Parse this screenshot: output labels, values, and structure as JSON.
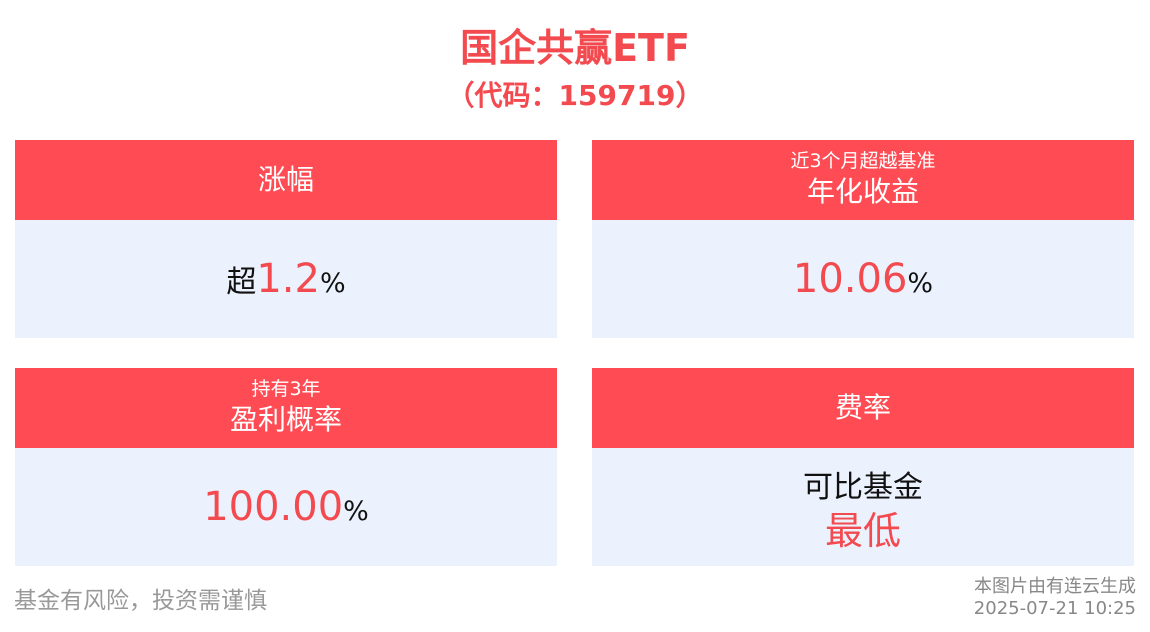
{
  "header": {
    "title": "国企共赢ETF",
    "code": "（代码：159719）"
  },
  "cards": [
    {
      "head": "涨幅",
      "value_prefix": "超",
      "value_number": "1.2",
      "value_unit": "%"
    },
    {
      "head_sub": "近3个月超越基准",
      "head_main": "年化收益",
      "value_number": "10.06",
      "value_unit": "%"
    },
    {
      "head_sub": "持有3年",
      "head_main": "盈利概率",
      "value_number": "100.00",
      "value_unit": "%"
    },
    {
      "head": "费率",
      "value_top": "可比基金",
      "value_bottom": "最低"
    }
  ],
  "footer": {
    "disclaimer": "基金有风险，投资需谨慎",
    "source": "本图片由有连云生成",
    "timestamp": "2025-07-21 10:25"
  },
  "colors": {
    "accent": "#ff4b53",
    "value_red": "#f24a4f",
    "card_bg": "#ecf2fd"
  }
}
